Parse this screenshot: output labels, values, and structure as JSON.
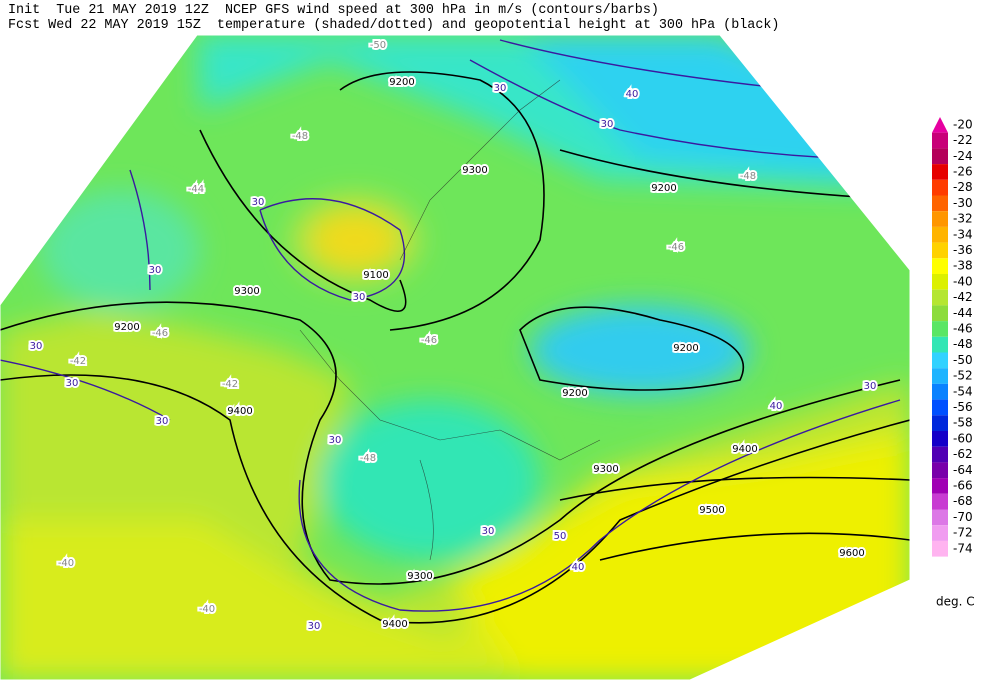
{
  "header": {
    "init": "Init  Tue 21 MAY 2019 12Z  NCEP GFS wind speed at 300 hPa in m/s (contours/barbs)",
    "forecast": "Fcst Wed 22 MAY 2019 15Z  temperature (shaded/dotted) and geopotential height at 300 hPa (black)"
  },
  "map": {
    "labels": [
      "9200",
      "9300",
      "9200",
      "9100",
      "9300",
      "9200",
      "9200",
      "9200",
      "9400",
      "9400",
      "9300",
      "9500",
      "9300",
      "9400",
      "9600",
      "30",
      "40",
      "30",
      "30",
      "30",
      "30",
      "30",
      "30",
      "30",
      "30",
      "30",
      "40",
      "30",
      "50",
      "40",
      "30",
      "-50",
      "-48",
      "-44",
      "-48",
      "-46",
      "-46",
      "-46",
      "-42",
      "-42",
      "-48",
      "-40",
      "-40"
    ]
  },
  "legend": {
    "levels": [
      -20,
      -22,
      -24,
      -26,
      -28,
      -30,
      -32,
      -34,
      -36,
      -38,
      -40,
      -42,
      -44,
      -46,
      -48,
      -50,
      -52,
      -54,
      -56,
      -58,
      -60,
      -62,
      -64,
      -66,
      -68,
      -70,
      -72,
      -74
    ],
    "colors": [
      "#e600a0",
      "#c80078",
      "#b4005a",
      "#e60000",
      "#ff3c00",
      "#ff6400",
      "#ff9600",
      "#ffb400",
      "#ffd200",
      "#ffff00",
      "#dcf000",
      "#b4e632",
      "#8cdc3c",
      "#5ae664",
      "#32e6b4",
      "#32d2ff",
      "#1eb4ff",
      "#0a82ff",
      "#0050ff",
      "#0028dc",
      "#1400c8",
      "#5000b4",
      "#7800aa",
      "#a000b4",
      "#c83cd2",
      "#dc78e6",
      "#f09cf0",
      "#ffb4f0"
    ],
    "unit": "deg. C"
  }
}
